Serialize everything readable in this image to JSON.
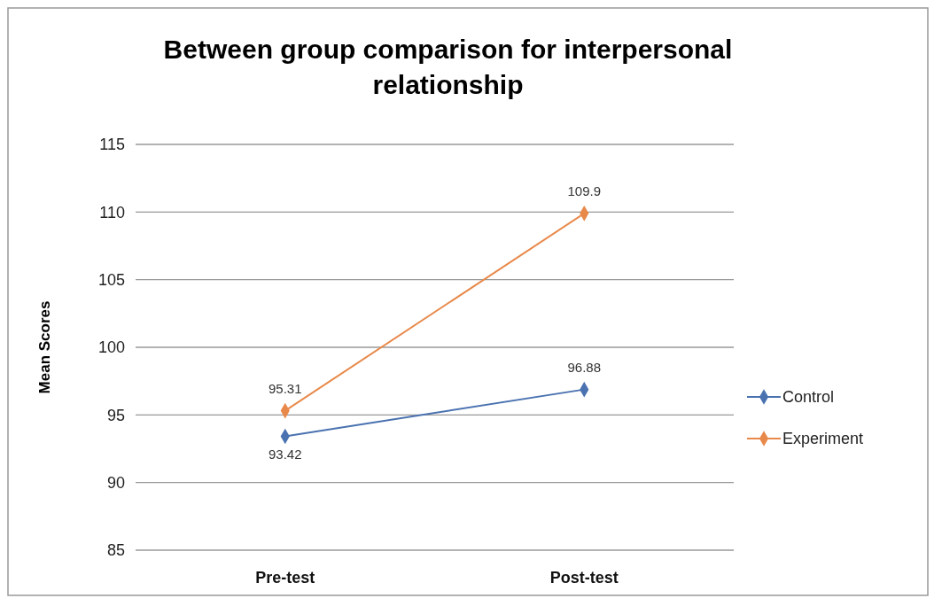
{
  "chart_data": {
    "type": "line",
    "title": "Between group comparison for interpersonal relationship",
    "ylabel": "Mean Scores",
    "categories": [
      "Pre-test",
      "Post-test"
    ],
    "series": [
      {
        "name": "Control",
        "color": "#4a72b0",
        "values": [
          93.42,
          96.88
        ]
      },
      {
        "name": "Experiment",
        "color": "#e8894a",
        "values": [
          95.31,
          109.9
        ]
      }
    ],
    "ylim": [
      85,
      115
    ],
    "yticks": [
      85,
      90,
      95,
      100,
      105,
      110,
      115
    ],
    "grid": "y",
    "legend": "right",
    "marker": "diamond",
    "line_style": "solid",
    "data_labels": true
  }
}
